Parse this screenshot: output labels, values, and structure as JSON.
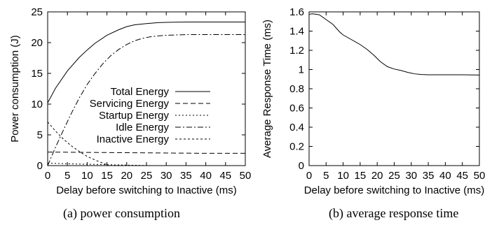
{
  "chart_data": [
    {
      "type": "line",
      "panel": "a",
      "caption": "(a) power consumption",
      "xlabel": "Delay before switching to Inactive (ms)",
      "ylabel": "Power consumption (J)",
      "xlim": [
        0,
        50
      ],
      "ylim": [
        0,
        25
      ],
      "xticks": [
        0,
        5,
        10,
        15,
        20,
        25,
        30,
        35,
        40,
        45,
        50
      ],
      "yticks": [
        0,
        5,
        10,
        15,
        20,
        25
      ],
      "grid": false,
      "legend_position": "center-right",
      "series": [
        {
          "name": "Total Energy",
          "dash": "",
          "points": [
            [
              0,
              10.2
            ],
            [
              2,
              12.6
            ],
            [
              5,
              15.4
            ],
            [
              8,
              17.6
            ],
            [
              10,
              18.8
            ],
            [
              12,
              19.9
            ],
            [
              15,
              21.2
            ],
            [
              18,
              22.1
            ],
            [
              20,
              22.6
            ],
            [
              22,
              22.9
            ],
            [
              25,
              23.1
            ],
            [
              28,
              23.25
            ],
            [
              30,
              23.3
            ],
            [
              35,
              23.35
            ],
            [
              40,
              23.35
            ],
            [
              45,
              23.35
            ],
            [
              50,
              23.35
            ]
          ]
        },
        {
          "name": "Servicing Energy",
          "dash": "7,4",
          "points": [
            [
              0,
              2.2
            ],
            [
              10,
              2.15
            ],
            [
              20,
              2.1
            ],
            [
              30,
              2.05
            ],
            [
              40,
              2.0
            ],
            [
              50,
              2.0
            ]
          ]
        },
        {
          "name": "Startup Energy",
          "dash": "2,3",
          "points": [
            [
              0,
              0.4
            ],
            [
              5,
              0.3
            ],
            [
              10,
              0.22
            ],
            [
              15,
              0.15
            ],
            [
              20,
              0.08
            ],
            [
              25,
              0.02
            ],
            [
              26.5,
              0
            ]
          ]
        },
        {
          "name": "Idle Energy",
          "dash": "8,3,2,3",
          "points": [
            [
              0,
              0
            ],
            [
              2,
              3.0
            ],
            [
              4,
              5.8
            ],
            [
              6,
              8.5
            ],
            [
              8,
              11.0
            ],
            [
              10,
              13.2
            ],
            [
              12,
              15.0
            ],
            [
              14,
              16.6
            ],
            [
              16,
              17.9
            ],
            [
              18,
              18.9
            ],
            [
              20,
              19.7
            ],
            [
              22,
              20.3
            ],
            [
              24,
              20.7
            ],
            [
              26,
              20.95
            ],
            [
              28,
              21.1
            ],
            [
              30,
              21.2
            ],
            [
              35,
              21.3
            ],
            [
              40,
              21.3
            ],
            [
              45,
              21.3
            ],
            [
              50,
              21.3
            ]
          ]
        },
        {
          "name": "Inactive Energy",
          "dash": "3,3",
          "points": [
            [
              0,
              7.1
            ],
            [
              2,
              5.6
            ],
            [
              4,
              4.3
            ],
            [
              6,
              3.2
            ],
            [
              8,
              2.3
            ],
            [
              10,
              1.5
            ],
            [
              12,
              0.9
            ],
            [
              14,
              0.4
            ],
            [
              15.6,
              0
            ]
          ]
        }
      ]
    },
    {
      "type": "line",
      "panel": "b",
      "caption": "(b) average response time",
      "xlabel": "Delay before switching to Inactive (ms)",
      "ylabel": "Average Response Time (ms)",
      "xlim": [
        0,
        50
      ],
      "ylim": [
        0,
        1.6
      ],
      "xticks": [
        0,
        5,
        10,
        15,
        20,
        25,
        30,
        35,
        40,
        45,
        50
      ],
      "yticks": [
        0,
        0.2,
        0.4,
        0.6,
        0.8,
        1,
        1.2,
        1.4,
        1.6
      ],
      "ytick_labels": [
        "0",
        "0.2",
        "0.4",
        "0.6",
        "0.8",
        "1",
        "1.2",
        "1.4",
        "1.6"
      ],
      "grid": false,
      "series": [
        {
          "name": "",
          "dash": "",
          "points": [
            [
              0,
              1.575
            ],
            [
              1,
              1.58
            ],
            [
              3,
              1.57
            ],
            [
              5,
              1.52
            ],
            [
              7,
              1.47
            ],
            [
              9,
              1.39
            ],
            [
              10,
              1.36
            ],
            [
              12,
              1.32
            ],
            [
              15,
              1.26
            ],
            [
              17,
              1.21
            ],
            [
              19,
              1.15
            ],
            [
              21,
              1.08
            ],
            [
              23,
              1.03
            ],
            [
              25,
              1.005
            ],
            [
              27,
              0.99
            ],
            [
              29,
              0.97
            ],
            [
              31,
              0.955
            ],
            [
              33,
              0.948
            ],
            [
              35,
              0.945
            ],
            [
              40,
              0.945
            ],
            [
              45,
              0.945
            ],
            [
              50,
              0.943
            ]
          ]
        }
      ]
    }
  ]
}
